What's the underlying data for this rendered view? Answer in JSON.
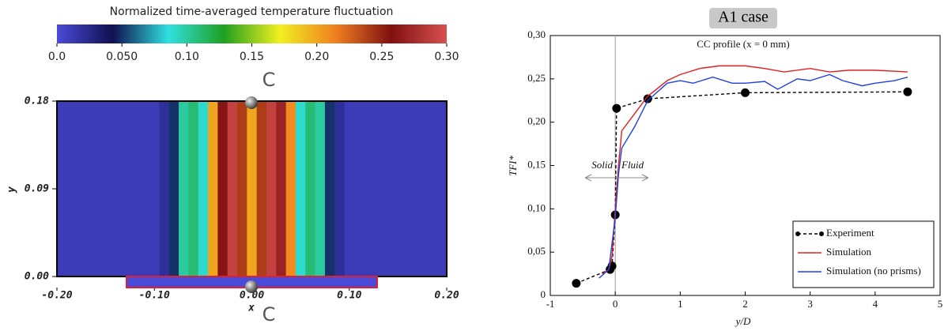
{
  "chart_data": [
    {
      "type": "heatmap",
      "title": "Normalized time-averaged temperature fluctuation",
      "xlabel": "x",
      "ylabel": "y",
      "annotations": [
        "C",
        "C"
      ],
      "x": [
        -0.2,
        -0.19,
        -0.18,
        -0.17,
        -0.16,
        -0.15,
        -0.14,
        -0.13,
        -0.12,
        -0.11,
        -0.1,
        -0.09,
        -0.08,
        -0.07,
        -0.06,
        -0.05,
        -0.04,
        -0.03,
        -0.02,
        -0.01,
        0,
        0.01,
        0.02,
        0.03,
        0.04,
        0.05,
        0.06,
        0.07,
        0.08,
        0.09,
        0.1,
        0.11,
        0.12,
        0.13,
        0.14,
        0.15,
        0.16,
        0.17,
        0.18,
        0.19,
        0.2
      ],
      "values": [
        0.01,
        0.01,
        0.01,
        0.01,
        0.01,
        0.01,
        0.01,
        0.01,
        0.01,
        0.01,
        0.01,
        0.02,
        0.05,
        0.1,
        0.11,
        0.09,
        0.2,
        0.26,
        0.29,
        0.24,
        0.2,
        0.24,
        0.29,
        0.27,
        0.21,
        0.09,
        0.11,
        0.1,
        0.05,
        0.02,
        0.01,
        0.01,
        0.01,
        0.01,
        0.01,
        0.01,
        0.01,
        0.01,
        0.01,
        0.01,
        0.01
      ],
      "xlim": [
        -0.2,
        0.2
      ],
      "ylim": [
        0,
        0.18
      ],
      "xticks": [
        {
          "value": -0.2,
          "label": "-0.20"
        },
        {
          "value": -0.1,
          "label": "-0.10"
        },
        {
          "value": 0,
          "label": "0.00"
        },
        {
          "value": 0.1,
          "label": "0.10"
        },
        {
          "value": 0.2,
          "label": "0.20"
        }
      ],
      "yticks": [
        {
          "value": 0,
          "label": "0.00"
        },
        {
          "value": 0.09,
          "label": "0.09"
        },
        {
          "value": 0.18,
          "label": "0.18"
        }
      ],
      "colorbar": {
        "clim": [
          0,
          0.3
        ],
        "colors": [
          "#4a4ad8",
          "#101050",
          "#30e0e0",
          "#20a020",
          "#f0f020",
          "#f08020",
          "#801010",
          "#d85050"
        ],
        "ticks": [
          {
            "value": 0,
            "label": "0.0"
          },
          {
            "value": 0.05,
            "label": "0.050"
          },
          {
            "value": 0.1,
            "label": "0.10"
          },
          {
            "value": 0.15,
            "label": "0.15"
          },
          {
            "value": 0.2,
            "label": "0.20"
          },
          {
            "value": 0.25,
            "label": "0.25"
          },
          {
            "value": 0.3,
            "label": "0.30"
          }
        ]
      }
    },
    {
      "type": "line",
      "title": "A1 case",
      "annotation": "CC profile (x = 0 mm)",
      "annotations": [
        "Solid",
        "Fluid"
      ],
      "xlabel": "y/D",
      "ylabel": "TFI*",
      "xlim": [
        -1,
        5
      ],
      "xticks": [
        -1,
        0,
        1,
        2,
        3,
        4,
        5
      ],
      "ylim": [
        0,
        0.3
      ],
      "yticks": [
        0,
        {
          "value": 0.05,
          "label": "0,05"
        },
        {
          "value": 0.1,
          "label": "0,10"
        },
        {
          "value": 0.15,
          "label": "0,15"
        },
        {
          "value": 0.2,
          "label": "0,20"
        },
        {
          "value": 0.25,
          "label": "0,25"
        },
        {
          "value": 0.3,
          "label": "0,30"
        }
      ],
      "legend": "lower right",
      "series": [
        {
          "name": "Experiment",
          "color": "#000000",
          "dashed": true,
          "markers": true,
          "x": [
            -0.6,
            -0.08,
            -0.05,
            0,
            0.02,
            0.5,
            2,
            4.5
          ],
          "values": [
            0.014,
            0.03,
            0.034,
            0.093,
            0.216,
            0.227,
            0.234,
            0.235
          ]
        },
        {
          "name": "Simulation",
          "color": "#e02020",
          "dashed": false,
          "markers": false,
          "x": [
            -0.2,
            -0.1,
            -0.05,
            0,
            0.05,
            0.1,
            0.3,
            0.5,
            0.8,
            1,
            1.3,
            1.6,
            2,
            2.3,
            2.6,
            3,
            3.3,
            3.6,
            4,
            4.5
          ],
          "values": [
            0.025,
            0.03,
            0.045,
            0.1,
            0.15,
            0.19,
            0.21,
            0.23,
            0.248,
            0.255,
            0.262,
            0.265,
            0.265,
            0.262,
            0.258,
            0.262,
            0.258,
            0.26,
            0.26,
            0.258
          ]
        },
        {
          "name": "Simulation (no prisms)",
          "color": "#2040e0",
          "dashed": false,
          "markers": false,
          "x": [
            -0.25,
            -0.1,
            0,
            0.05,
            0.1,
            0.3,
            0.5,
            0.8,
            1,
            1.2,
            1.5,
            1.8,
            2,
            2.3,
            2.5,
            2.8,
            3,
            3.3,
            3.5,
            3.8,
            4,
            4.3,
            4.5
          ],
          "values": [
            0.02,
            0.03,
            0.09,
            0.14,
            0.17,
            0.195,
            0.225,
            0.245,
            0.248,
            0.245,
            0.252,
            0.245,
            0.245,
            0.247,
            0.238,
            0.25,
            0.248,
            0.255,
            0.248,
            0.242,
            0.245,
            0.248,
            0.252
          ]
        }
      ]
    }
  ]
}
